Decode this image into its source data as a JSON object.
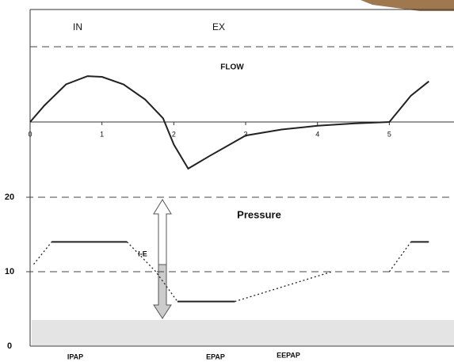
{
  "chart_data": [
    {
      "type": "line",
      "title": "FLOW",
      "annotations": [
        "IN",
        "EX"
      ],
      "x": [
        0,
        0.2,
        0.5,
        0.8,
        1.0,
        1.3,
        1.6,
        1.85,
        2.0,
        2.2,
        2.5,
        3.0,
        3.5,
        4.0,
        4.5,
        5.0,
        5.3,
        5.55
      ],
      "values": [
        0,
        0.22,
        0.5,
        0.61,
        0.6,
        0.5,
        0.3,
        0.05,
        -0.3,
        -0.62,
        -0.45,
        -0.18,
        -0.1,
        -0.05,
        -0.02,
        0,
        0.35,
        0.54
      ],
      "color": "#222",
      "xlim": [
        0,
        5.9
      ],
      "ylim": [
        -1,
        1
      ],
      "xticks": [
        0,
        1,
        2,
        3,
        4,
        5
      ]
    },
    {
      "type": "line",
      "title": "Pressure",
      "annotations": [
        "I-E",
        "IPAP",
        "EPAP",
        "EEPAP"
      ],
      "color": "#222",
      "xlim": [
        0,
        5.9
      ],
      "ylim": [
        0,
        20
      ],
      "yticks": [
        0,
        10,
        20
      ],
      "grid": true,
      "series": [
        {
          "style": "dotted",
          "x": [
            0.05,
            0.3
          ],
          "values": [
            11,
            14
          ]
        },
        {
          "style": "solid",
          "x": [
            0.3,
            1.35
          ],
          "values": [
            14,
            14
          ]
        },
        {
          "style": "dotted",
          "x": [
            1.35,
            1.75,
            2.05
          ],
          "values": [
            14,
            10,
            6
          ]
        },
        {
          "style": "solid",
          "x": [
            2.05,
            2.85
          ],
          "values": [
            6,
            6
          ]
        },
        {
          "style": "dotted",
          "x": [
            2.85,
            4.2
          ],
          "values": [
            6,
            10
          ]
        },
        {
          "style": "dotted",
          "x": [
            5.0,
            5.3
          ],
          "values": [
            10,
            14
          ]
        },
        {
          "style": "solid",
          "x": [
            5.3,
            5.55
          ],
          "values": [
            14,
            14
          ]
        }
      ]
    }
  ]
}
